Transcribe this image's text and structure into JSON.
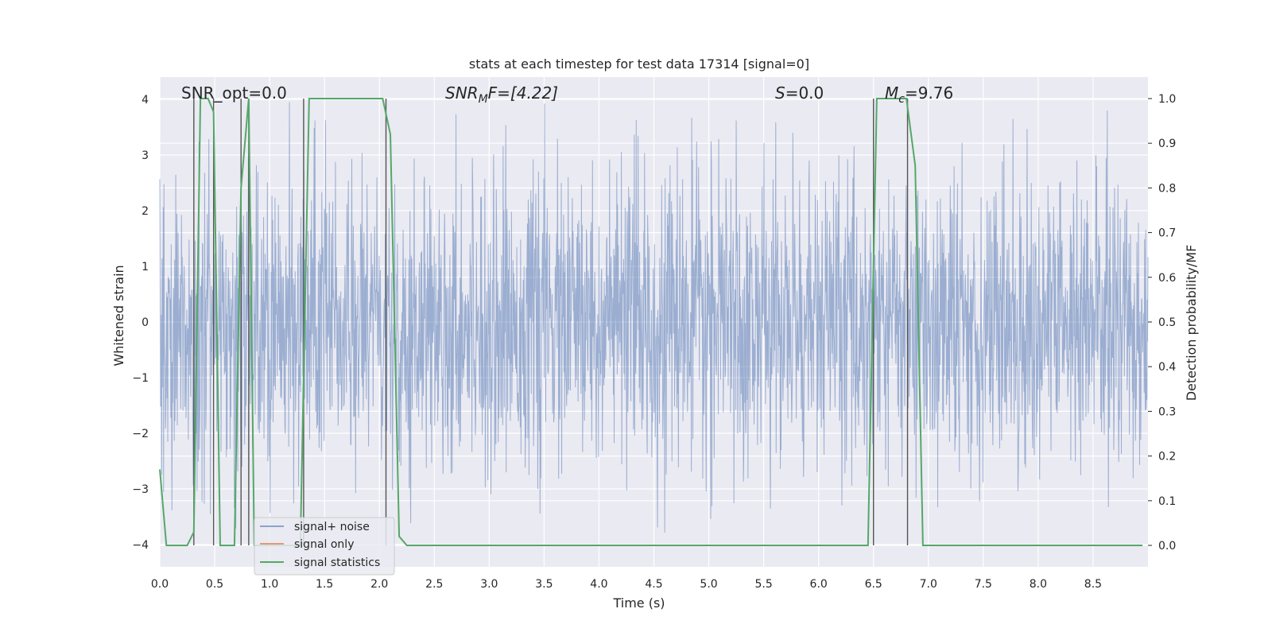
{
  "chart_data": {
    "type": "line",
    "title": "stats at each timestep for test data 17314 [signal=0]",
    "xlabel": "Time (s)",
    "ylabel": "Whitened strain",
    "y2label": "Detection probability/MF",
    "xlim": [
      0.0,
      9.0
    ],
    "ylim": [
      -4.4,
      4.4
    ],
    "y2lim": [
      -0.048,
      1.048
    ],
    "x_ticks": [
      "0.0",
      "0.5",
      "1.0",
      "1.5",
      "2.0",
      "2.5",
      "3.0",
      "3.5",
      "4.0",
      "4.5",
      "5.0",
      "5.5",
      "6.0",
      "6.5",
      "7.0",
      "7.5",
      "8.0",
      "8.5"
    ],
    "y_ticks": [
      "4",
      "3",
      "2",
      "1",
      "0",
      "−1",
      "−2",
      "−3",
      "−4"
    ],
    "y2_ticks": [
      "1.0",
      "0.9",
      "0.8",
      "0.7",
      "0.6",
      "0.5",
      "0.4",
      "0.3",
      "0.2",
      "0.1",
      "0.0"
    ],
    "grid": true,
    "legend_position": "lower-left",
    "background": "#eaeaf2",
    "annotations": [
      {
        "label": "SNR_opt=0.0"
      },
      {
        "prefix": "SNR",
        "sub": "M",
        "suffix": "F=[4.22]"
      },
      {
        "prefix": "S",
        "sub": "",
        "suffix": "=0.0"
      },
      {
        "prefix": "M",
        "sub": "c",
        "suffix": "=9.76"
      }
    ],
    "series": [
      {
        "name": "signal+ noise",
        "color": "#4c72b0",
        "axis": "left",
        "description_values": "dense noise trace",
        "amplitude": 1.3
      },
      {
        "name": "signal only",
        "color": "#dd8452",
        "axis": "left",
        "values": []
      },
      {
        "name": "signal statistics",
        "color": "#55a868",
        "axis": "right",
        "x": [
          0.0,
          0.06,
          0.25,
          0.31,
          0.37,
          0.44,
          0.49,
          0.55,
          0.68,
          0.74,
          0.81,
          0.86,
          1.28,
          1.36,
          2.03,
          2.1,
          2.18,
          2.25,
          6.45,
          6.53,
          6.6,
          6.8,
          6.88,
          6.95,
          8.95
        ],
        "values": [
          0.17,
          0.0,
          0.0,
          0.03,
          1.0,
          1.0,
          0.97,
          0.0,
          0.0,
          0.8,
          1.0,
          0.0,
          0.0,
          1.0,
          1.0,
          0.92,
          0.02,
          0.0,
          0.0,
          1.0,
          1.0,
          1.0,
          0.85,
          0.0,
          0.0
        ]
      }
    ],
    "vertical_markers_x": [
      0.31,
      0.49,
      0.74,
      0.81,
      1.31,
      2.06,
      6.5,
      6.81
    ]
  }
}
